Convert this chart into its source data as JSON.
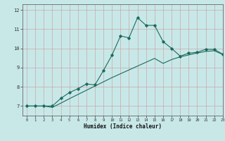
{
  "xlabel": "Humidex (Indice chaleur)",
  "background_color": "#c8e8e8",
  "grid_color": "#c8a8a8",
  "line_color": "#1a6b5e",
  "xlim": [
    -0.5,
    23
  ],
  "ylim": [
    6.5,
    12.3
  ],
  "yticks": [
    7,
    8,
    9,
    10,
    11,
    12
  ],
  "xticks": [
    0,
    1,
    2,
    3,
    4,
    5,
    6,
    7,
    8,
    9,
    10,
    11,
    12,
    13,
    14,
    15,
    16,
    17,
    18,
    19,
    20,
    21,
    22,
    23
  ],
  "line1_x": [
    0,
    1,
    2,
    3,
    4,
    5,
    6,
    7,
    8,
    9,
    10,
    11,
    12,
    13,
    14,
    15,
    16,
    17,
    18,
    19,
    20,
    21,
    22,
    23
  ],
  "line1_y": [
    7.0,
    7.0,
    7.0,
    7.0,
    7.4,
    7.7,
    7.9,
    8.15,
    8.1,
    8.85,
    9.65,
    10.65,
    10.55,
    11.6,
    11.2,
    11.2,
    10.35,
    10.0,
    9.6,
    9.75,
    9.8,
    9.95,
    9.95,
    9.7
  ],
  "line2_x": [
    0,
    1,
    2,
    3,
    4,
    5,
    6,
    7,
    8,
    9,
    10,
    11,
    12,
    13,
    14,
    15,
    16,
    17,
    18,
    19,
    20,
    21,
    22,
    23
  ],
  "line2_y": [
    7.0,
    7.0,
    7.0,
    6.93,
    7.15,
    7.38,
    7.6,
    7.82,
    8.04,
    8.26,
    8.48,
    8.68,
    8.88,
    9.08,
    9.28,
    9.48,
    9.22,
    9.42,
    9.56,
    9.66,
    9.76,
    9.84,
    9.88,
    9.68
  ]
}
